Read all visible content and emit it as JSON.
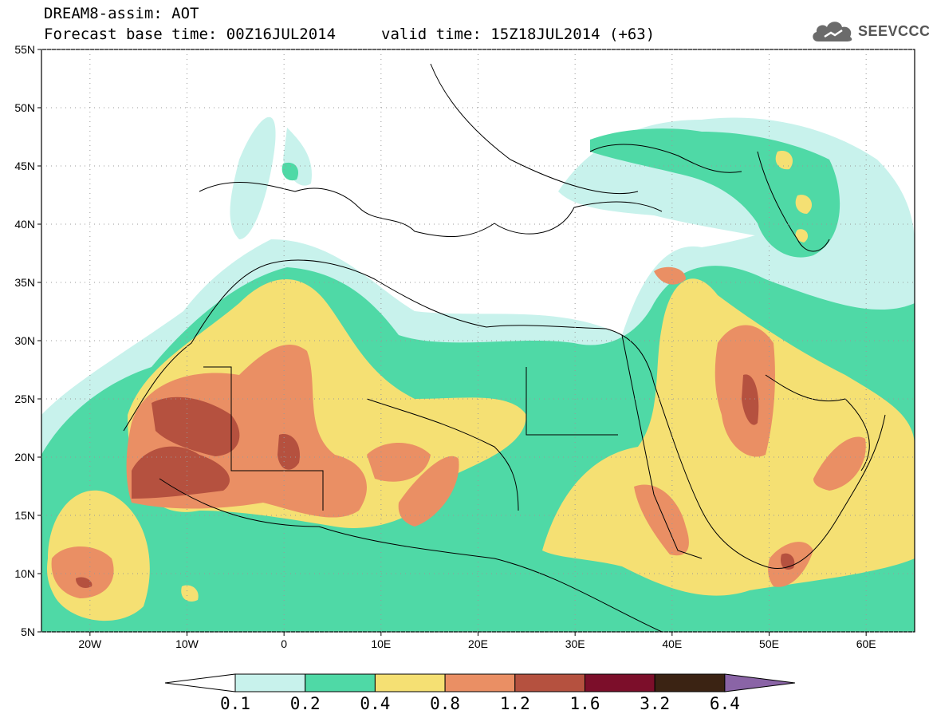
{
  "header": {
    "title": "DREAM8-assim: AOT",
    "base_time": "Forecast base time: 00Z16JUL2014",
    "valid_time": "valid time: 15Z18JUL2014 (+63)",
    "logo": "SEEVCCC"
  },
  "map": {
    "lon_range": [
      -25,
      65
    ],
    "lat_range": [
      5,
      55
    ],
    "lat_labels": [
      "55N",
      "50N",
      "45N",
      "40N",
      "35N",
      "30N",
      "25N",
      "20N",
      "15N",
      "10N",
      "5N"
    ],
    "lat_values": [
      55,
      50,
      45,
      40,
      35,
      30,
      25,
      20,
      15,
      10,
      5
    ],
    "lon_labels": [
      "20W",
      "10W",
      "0",
      "10E",
      "20E",
      "30E",
      "40E",
      "50E",
      "60E"
    ],
    "lon_values": [
      -20,
      -10,
      0,
      10,
      20,
      30,
      40,
      50,
      60
    ],
    "variable": "AOT"
  },
  "colorbar": {
    "labels": [
      "0.1",
      "0.2",
      "0.4",
      "0.8",
      "1.2",
      "1.6",
      "3.2",
      "6.4"
    ],
    "colors": [
      "#c8f2ec",
      "#4fd9a6",
      "#f5e073",
      "#ea8f64",
      "#b5513f",
      "#7c0e2a",
      "#3b2313",
      "#8a64a6"
    ]
  }
}
